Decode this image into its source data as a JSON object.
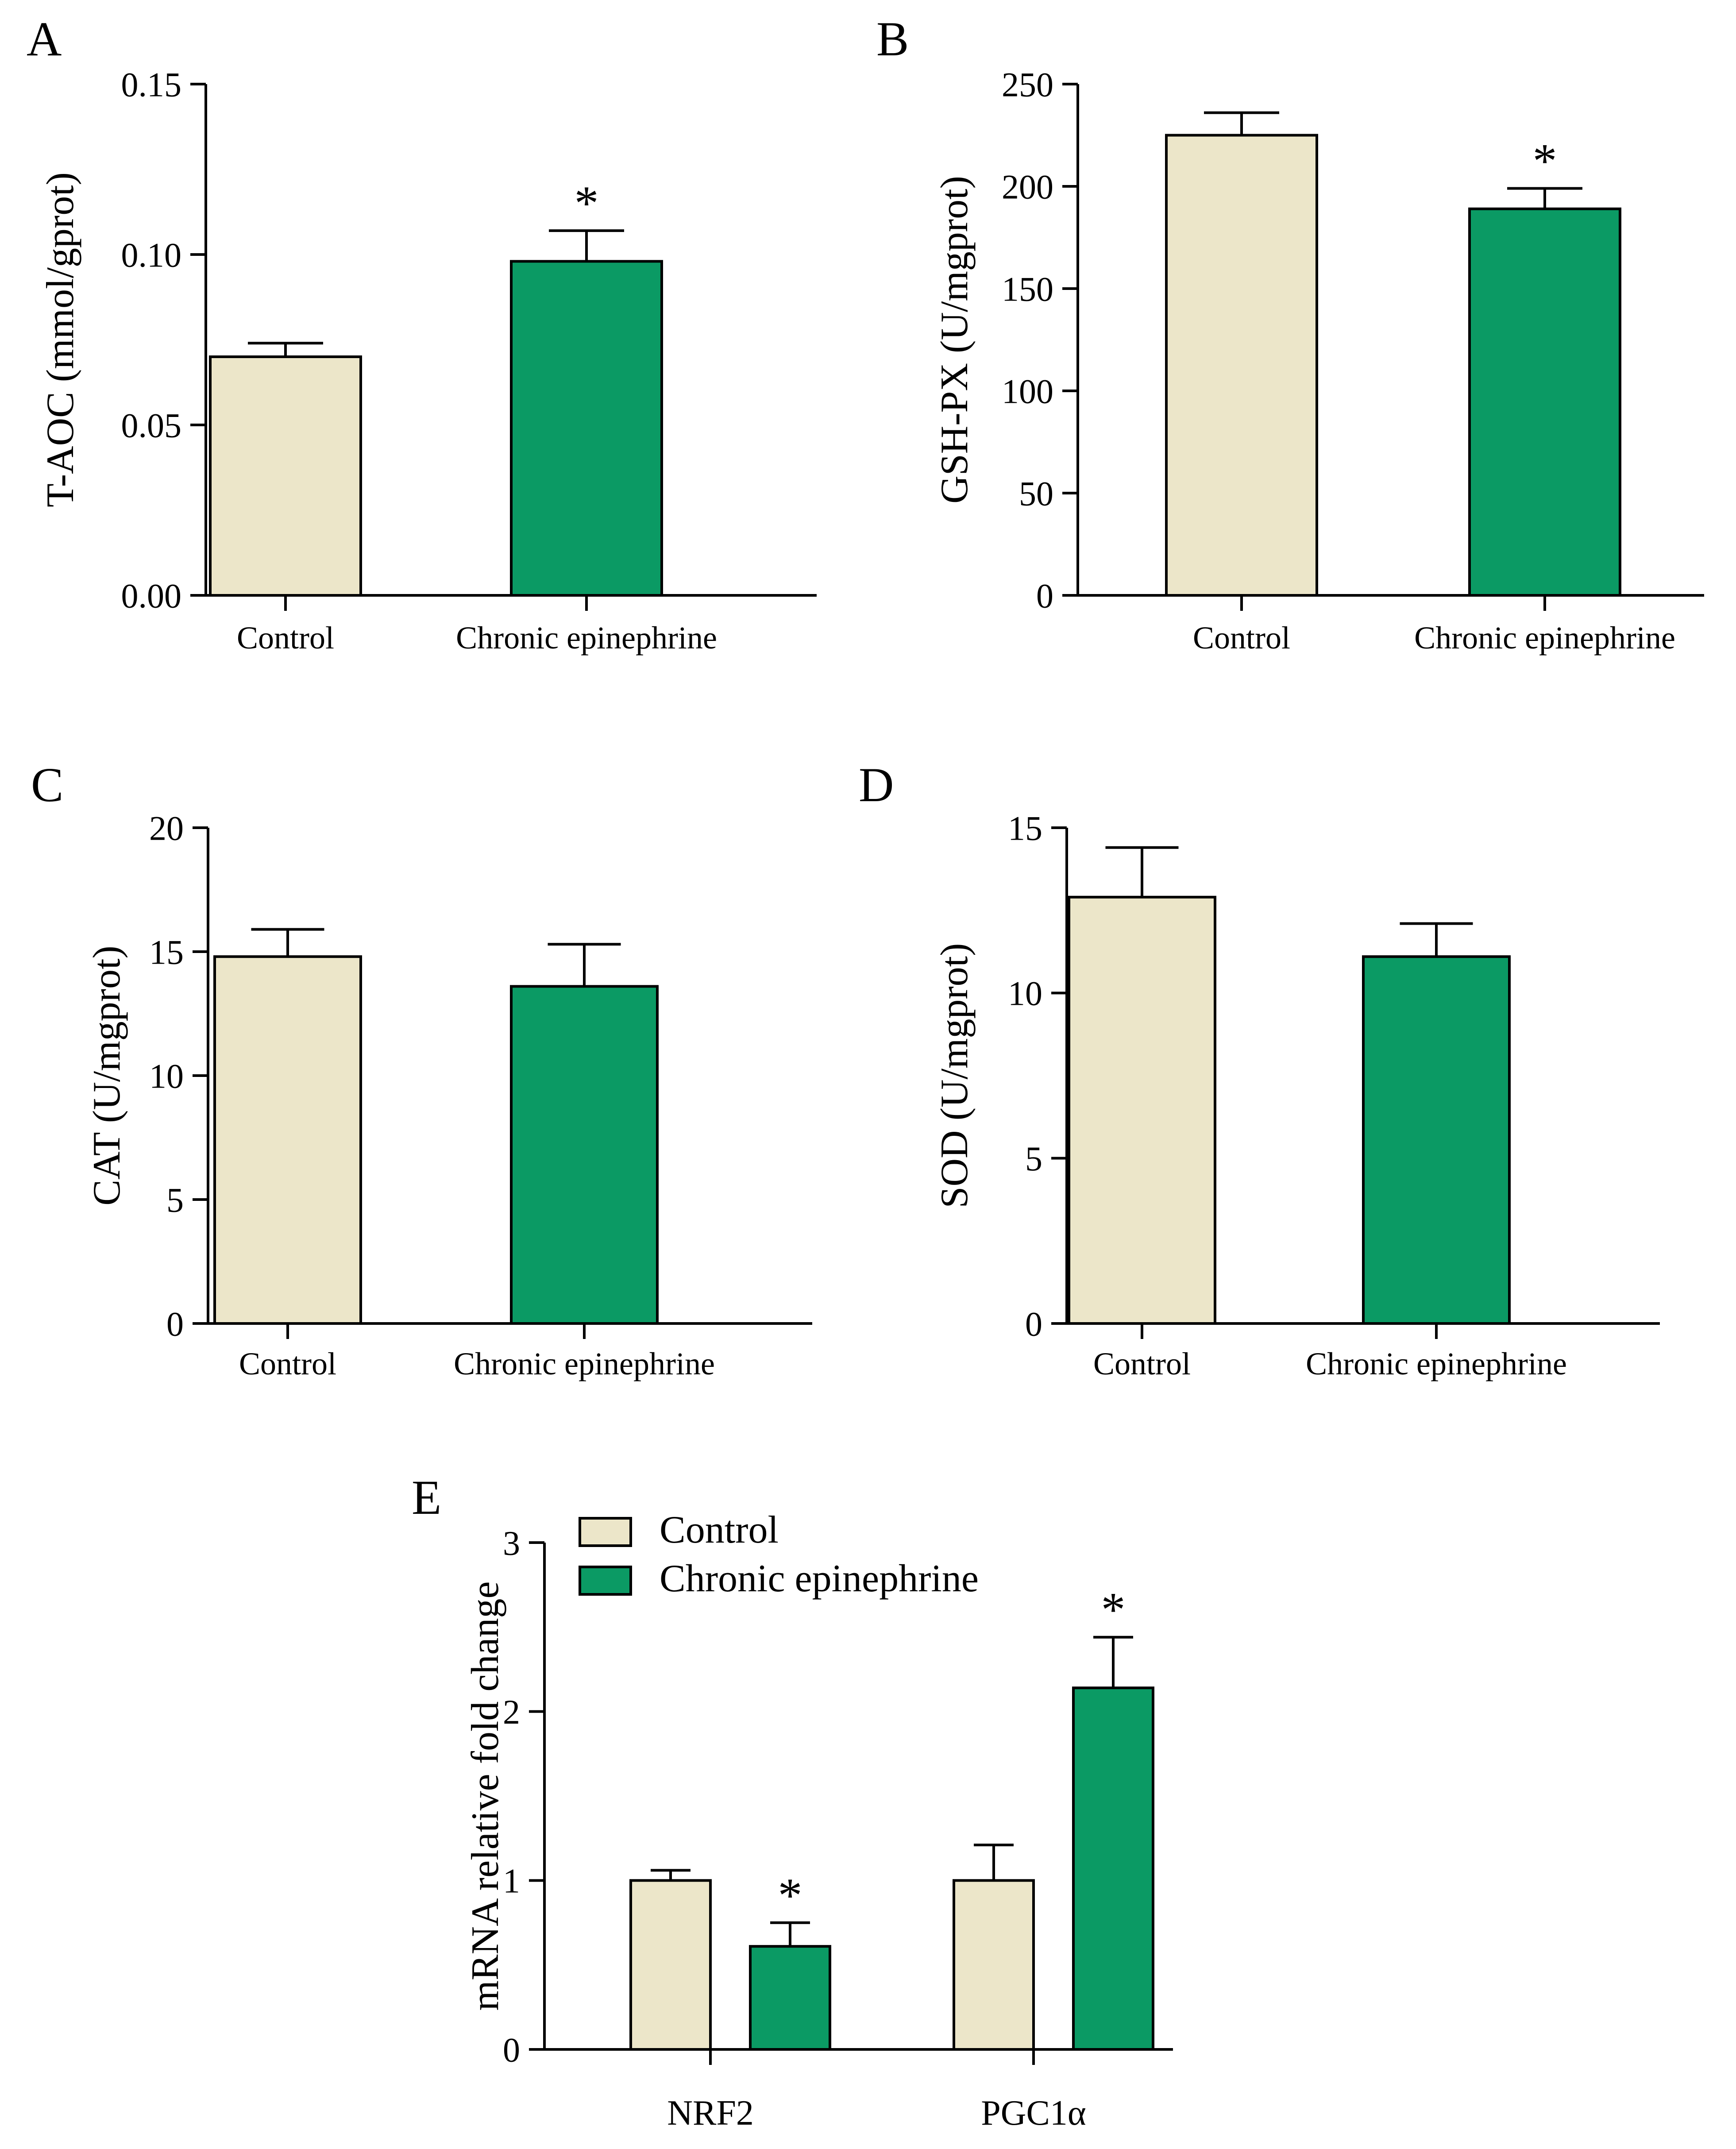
{
  "figure": {
    "colors": {
      "control": "#ece6c9",
      "treatment": "#0b9a64",
      "stroke": "#000000"
    }
  },
  "chart_data": [
    {
      "panel": "A",
      "type": "bar",
      "ylabel": "T-AOC (mmol/gprot)",
      "xlabel": "",
      "ylim": [
        0,
        0.15
      ],
      "yticks": [
        0,
        0.05,
        0.1,
        0.15
      ],
      "ytick_labels": [
        "0.00",
        "0.05",
        "0.10",
        "0.15"
      ],
      "categories": [
        "Control",
        "Chronic epinephrine"
      ],
      "values": [
        0.07,
        0.098
      ],
      "errors": [
        0.004,
        0.009
      ],
      "significance": [
        "",
        "*"
      ]
    },
    {
      "panel": "B",
      "type": "bar",
      "ylabel": "GSH-PX (U/mgprot)",
      "xlabel": "",
      "ylim": [
        0,
        250
      ],
      "yticks": [
        0,
        50,
        100,
        150,
        200,
        250
      ],
      "ytick_labels": [
        "0",
        "50",
        "100",
        "150",
        "200",
        "250"
      ],
      "categories": [
        "Control",
        "Chronic epinephrine"
      ],
      "values": [
        225,
        189
      ],
      "errors": [
        11,
        10
      ],
      "significance": [
        "",
        "*"
      ]
    },
    {
      "panel": "C",
      "type": "bar",
      "ylabel": "CAT (U/mgprot)",
      "xlabel": "",
      "ylim": [
        0,
        20
      ],
      "yticks": [
        0,
        5,
        10,
        15,
        20
      ],
      "ytick_labels": [
        "0",
        "5",
        "10",
        "15",
        "20"
      ],
      "categories": [
        "Control",
        "Chronic epinephrine"
      ],
      "values": [
        14.8,
        13.6
      ],
      "errors": [
        1.1,
        1.7
      ],
      "significance": [
        "",
        ""
      ]
    },
    {
      "panel": "D",
      "type": "bar",
      "ylabel": "SOD (U/mgprot)",
      "xlabel": "",
      "ylim": [
        0,
        15
      ],
      "yticks": [
        0,
        5,
        10,
        15
      ],
      "ytick_labels": [
        "0",
        "5",
        "10",
        "15"
      ],
      "categories": [
        "Control",
        "Chronic epinephrine"
      ],
      "values": [
        12.9,
        11.1
      ],
      "errors": [
        1.5,
        1.0
      ],
      "significance": [
        "",
        ""
      ]
    },
    {
      "panel": "E",
      "type": "bar",
      "ylabel": "mRNA relative fold change",
      "xlabel": "",
      "ylim": [
        0,
        3
      ],
      "yticks": [
        0,
        1,
        2,
        3
      ],
      "ytick_labels": [
        "0",
        "1",
        "2",
        "3"
      ],
      "categories": [
        "NRF2",
        "PGC1α"
      ],
      "legend": [
        "Control",
        "Chronic epinephrine"
      ],
      "legend_position": "top-left",
      "series": [
        {
          "name": "Control",
          "values": [
            1.0,
            1.0
          ],
          "errors": [
            0.06,
            0.21
          ],
          "significance": [
            "",
            ""
          ]
        },
        {
          "name": "Chronic epinephrine",
          "values": [
            0.61,
            2.14
          ],
          "errors": [
            0.14,
            0.3
          ],
          "significance": [
            "*",
            "*"
          ]
        }
      ]
    }
  ]
}
